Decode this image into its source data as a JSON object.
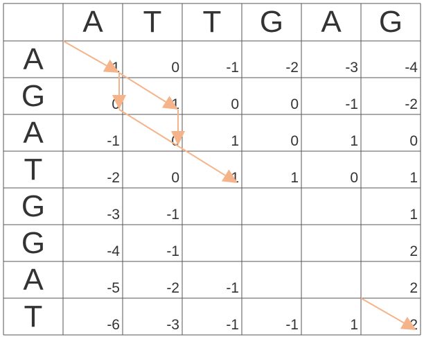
{
  "top_sequence": [
    "A",
    "T",
    "T",
    "G",
    "A",
    "G"
  ],
  "left_sequence": [
    "A",
    "G",
    "A",
    "T",
    "G",
    "G",
    "A",
    "T"
  ],
  "matrix": [
    [
      "1",
      "0",
      "-1",
      "-2",
      "-3",
      "-4"
    ],
    [
      "0",
      "1",
      "0",
      "0",
      "-1",
      "-2"
    ],
    [
      "-1",
      "0",
      "1",
      "0",
      "1",
      "0"
    ],
    [
      "-2",
      "0",
      "1",
      "1",
      "0",
      "1"
    ],
    [
      "-3",
      "-1",
      "",
      "",
      "",
      "1"
    ],
    [
      "-4",
      "-1",
      "",
      "",
      "",
      "2"
    ],
    [
      "-5",
      "-2",
      "-1",
      "",
      "",
      "2"
    ],
    [
      "-6",
      "-3",
      "-1",
      "-1",
      "1",
      "2"
    ]
  ],
  "arrows": [
    {
      "from": [
        0,
        0
      ],
      "to": [
        1,
        1
      ]
    },
    {
      "from": [
        1,
        1
      ],
      "to": [
        2,
        1
      ]
    },
    {
      "from": [
        1,
        1
      ],
      "to": [
        2,
        2
      ]
    },
    {
      "from": [
        2,
        2
      ],
      "to": [
        3,
        2
      ]
    },
    {
      "from": [
        2,
        1
      ],
      "to": [
        4,
        3
      ]
    },
    {
      "from": [
        8,
        6
      ],
      "to": [
        9,
        7
      ]
    }
  ],
  "colors": {
    "grid_line": "#555555",
    "text": "#333333",
    "arrow": "#f5b38a"
  }
}
